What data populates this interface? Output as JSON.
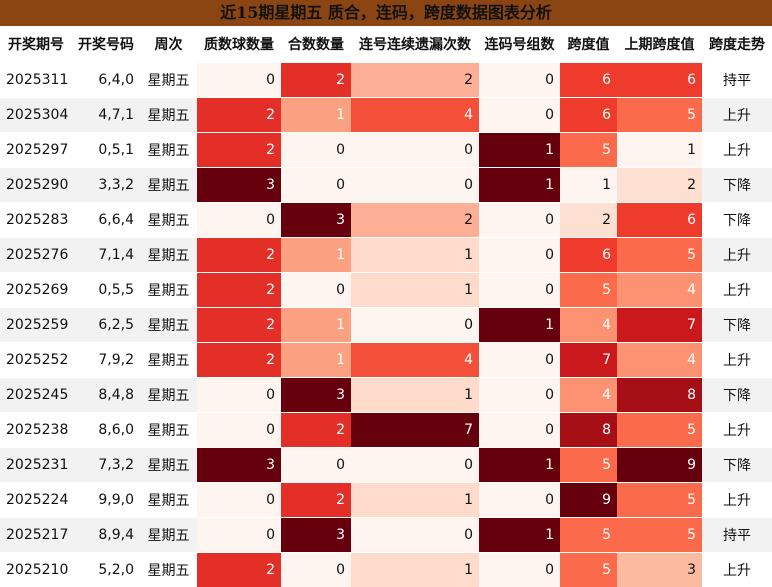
{
  "title": "近15期星期五 质合，连码，跨度数据图表分析",
  "table": {
    "header": [
      "开奖期号",
      "开奖号码",
      "周次",
      "质数球数量",
      "合数数量",
      "连号连续遗漏次数",
      "连码号组数",
      "跨度值",
      "上期跨度值",
      "跨度走势"
    ],
    "rows": [
      [
        "2025311",
        "6,4,0",
        "星期五",
        0,
        2,
        2,
        0,
        6,
        6,
        "持平"
      ],
      [
        "2025304",
        "4,7,1",
        "星期五",
        2,
        1,
        4,
        0,
        6,
        5,
        "上升"
      ],
      [
        "2025297",
        "0,5,1",
        "星期五",
        2,
        0,
        0,
        1,
        5,
        1,
        "上升"
      ],
      [
        "2025290",
        "3,3,2",
        "星期五",
        3,
        0,
        0,
        1,
        1,
        2,
        "下降"
      ],
      [
        "2025283",
        "6,6,4",
        "星期五",
        0,
        3,
        2,
        0,
        2,
        6,
        "下降"
      ],
      [
        "2025276",
        "7,1,4",
        "星期五",
        2,
        1,
        1,
        0,
        6,
        5,
        "上升"
      ],
      [
        "2025269",
        "0,5,5",
        "星期五",
        2,
        0,
        1,
        0,
        5,
        4,
        "上升"
      ],
      [
        "2025259",
        "6,2,5",
        "星期五",
        2,
        1,
        0,
        1,
        4,
        7,
        "下降"
      ],
      [
        "2025252",
        "7,9,2",
        "星期五",
        2,
        1,
        4,
        0,
        7,
        4,
        "上升"
      ],
      [
        "2025245",
        "8,4,8",
        "星期五",
        0,
        3,
        1,
        0,
        4,
        8,
        "下降"
      ],
      [
        "2025238",
        "8,6,0",
        "星期五",
        0,
        2,
        7,
        0,
        8,
        5,
        "上升"
      ],
      [
        "2025231",
        "7,3,2",
        "星期五",
        3,
        0,
        0,
        1,
        5,
        9,
        "下降"
      ],
      [
        "2025224",
        "9,9,0",
        "星期五",
        0,
        2,
        1,
        0,
        9,
        5,
        "上升"
      ],
      [
        "2025217",
        "8,9,4",
        "星期五",
        0,
        3,
        0,
        1,
        5,
        5,
        "持平"
      ],
      [
        "2025210",
        "5,2,0",
        "星期五",
        2,
        0,
        1,
        0,
        5,
        3,
        "上升"
      ]
    ]
  }
}
